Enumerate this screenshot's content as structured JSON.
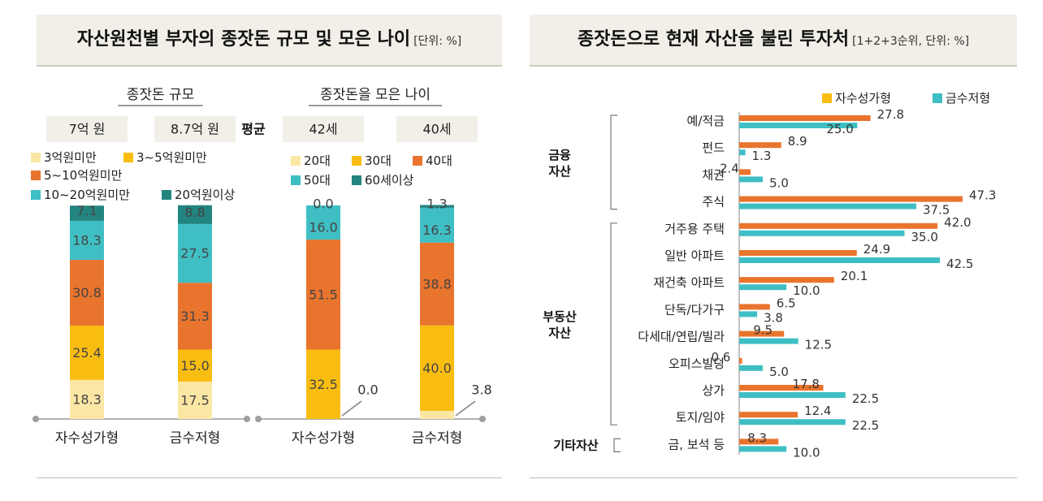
{
  "left_panel": {
    "title": "자산원천별 부자의 종잣돈 규모 및 모은 나이",
    "unit": "[단위: %]"
  },
  "right_panel": {
    "title": "종잣돈으로 현재 자산을 불린 투자처",
    "unit": "[1+2+3순위, 단위: %]"
  },
  "colors": {
    "c1": "#fbe7a4",
    "c2": "#f9bd12",
    "c3": "#e9742d",
    "c4": "#3fbfc4",
    "c5": "#22857f"
  },
  "chart_data": [
    {
      "type": "bar",
      "stacked": true,
      "title": "종잣돈 규모",
      "avg_label": "평균",
      "categories": [
        "자수성가형",
        "금수저형"
      ],
      "averages": [
        "7억 원",
        "8.7억 원"
      ],
      "series": [
        {
          "name": "3억원미만",
          "values": [
            18.3,
            17.5
          ]
        },
        {
          "name": "3~5억원미만",
          "values": [
            25.4,
            15.0
          ]
        },
        {
          "name": "5~10억원미만",
          "values": [
            30.8,
            31.3
          ]
        },
        {
          "name": "10~20억원미만",
          "values": [
            18.3,
            27.5
          ]
        },
        {
          "name": "20억원이상",
          "values": [
            7.1,
            8.8
          ]
        }
      ],
      "value_labels": [
        [
          "18.3",
          "17.5"
        ],
        [
          "25.4",
          "15.0"
        ],
        [
          "30.8",
          "31.3"
        ],
        [
          "18.3",
          "27.5"
        ],
        [
          "7.1",
          "8.8"
        ]
      ],
      "legend": "top",
      "ylim": [
        0,
        100
      ]
    },
    {
      "type": "bar",
      "stacked": true,
      "title": "종잣돈을 모은 나이",
      "categories": [
        "자수성가형",
        "금수저형"
      ],
      "averages": [
        "42세",
        "40세"
      ],
      "series": [
        {
          "name": "20대",
          "values": [
            0.0,
            3.8
          ]
        },
        {
          "name": "30대",
          "values": [
            32.5,
            40.0
          ]
        },
        {
          "name": "40대",
          "values": [
            51.5,
            38.8
          ]
        },
        {
          "name": "50대",
          "values": [
            16.0,
            16.3
          ]
        },
        {
          "name": "60세이상",
          "values": [
            0.0,
            1.3
          ]
        }
      ],
      "value_labels": [
        [
          "0.0",
          "3.8"
        ],
        [
          "32.5",
          "40.0"
        ],
        [
          "51.5",
          "38.8"
        ],
        [
          "16.0",
          "16.3"
        ],
        [
          "0.0",
          "1.3"
        ]
      ],
      "legend": "top",
      "ylim": [
        0,
        100
      ]
    },
    {
      "type": "bar",
      "orientation": "horizontal",
      "title": "종잣돈으로 현재 자산을 불린 투자처",
      "legend": "top-right",
      "series_names": [
        "자수성가형",
        "금수저형"
      ],
      "groups": [
        {
          "name": "금융\n자산",
          "items": [
            {
              "label": "예/적금",
              "values": [
                27.8,
                25.0
              ],
              "labels": [
                "27.8",
                "25.0"
              ]
            },
            {
              "label": "펀드",
              "values": [
                8.9,
                1.3
              ],
              "labels": [
                "8.9",
                "1.3"
              ]
            },
            {
              "label": "채권",
              "values": [
                2.4,
                5.0
              ],
              "labels": [
                "2.4",
                "5.0"
              ]
            },
            {
              "label": "주식",
              "values": [
                47.3,
                37.5
              ],
              "labels": [
                "47.3",
                "37.5"
              ]
            }
          ]
        },
        {
          "name": "부동산\n자산",
          "items": [
            {
              "label": "거주용 주택",
              "values": [
                42.0,
                35.0
              ],
              "labels": [
                "42.0",
                "35.0"
              ]
            },
            {
              "label": "일반 아파트",
              "values": [
                24.9,
                42.5
              ],
              "labels": [
                "24.9",
                "42.5"
              ]
            },
            {
              "label": "재건축 아파트",
              "values": [
                20.1,
                10.0
              ],
              "labels": [
                "20.1",
                "10.0"
              ]
            },
            {
              "label": "단독/다가구",
              "values": [
                6.5,
                3.8
              ],
              "labels": [
                "6.5",
                "3.8"
              ]
            },
            {
              "label": "다세대/연립/빌라",
              "values": [
                9.5,
                12.5
              ],
              "labels": [
                "9.5",
                "12.5"
              ]
            },
            {
              "label": "오피스빌딩",
              "values": [
                0.6,
                5.0
              ],
              "labels": [
                "0.6",
                "5.0"
              ]
            },
            {
              "label": "상가",
              "values": [
                17.8,
                22.5
              ],
              "labels": [
                "17.8",
                "22.5"
              ]
            },
            {
              "label": "토지/임야",
              "values": [
                12.4,
                22.5
              ],
              "labels": [
                "12.4",
                "22.5"
              ]
            }
          ]
        },
        {
          "name": "기타자산",
          "items": [
            {
              "label": "금, 보석 등",
              "values": [
                8.3,
                10.0
              ],
              "labels": [
                "8.3",
                "10.0"
              ]
            }
          ]
        }
      ],
      "xlim": [
        0,
        50
      ]
    }
  ]
}
